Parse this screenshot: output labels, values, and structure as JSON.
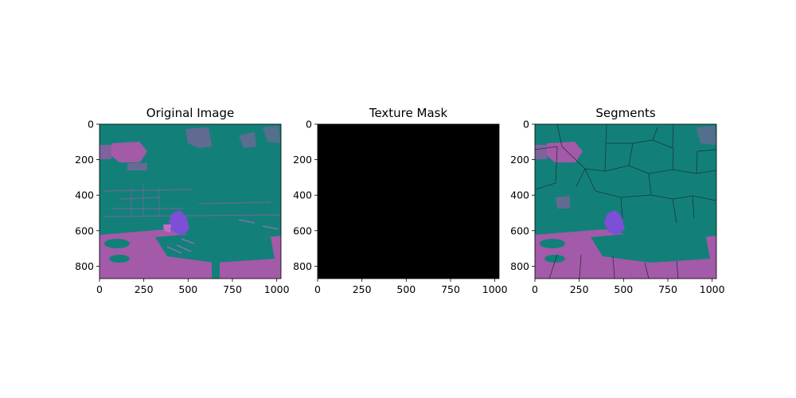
{
  "chart_data": [
    {
      "type": "image",
      "title": "Original Image",
      "xlim": [
        0,
        1024
      ],
      "ylim": [
        0,
        870
      ],
      "xticks": [
        0,
        250,
        500,
        750,
        1000
      ],
      "yticks": [
        0,
        200,
        400,
        600,
        800
      ],
      "xtick_labels": [
        "0",
        "250",
        "500",
        "750",
        "1000"
      ],
      "ytick_labels": [
        "0",
        "200",
        "400",
        "600",
        "800"
      ],
      "colors": {
        "teal": "#128079",
        "magenta": "#a35aa8",
        "purple": "#7c4fd6",
        "lilac": "#c76bc9"
      }
    },
    {
      "type": "image",
      "title": "Texture Mask",
      "xlim": [
        0,
        1024
      ],
      "ylim": [
        0,
        870
      ],
      "xticks": [
        0,
        250,
        500,
        750,
        1000
      ],
      "yticks": [
        0,
        200,
        400,
        600,
        800
      ],
      "xtick_labels": [
        "0",
        "250",
        "500",
        "750",
        "1000"
      ],
      "ytick_labels": [
        "0",
        "200",
        "400",
        "600",
        "800"
      ],
      "colors": {
        "fill": "#000000"
      }
    },
    {
      "type": "image",
      "title": "Segments",
      "xlim": [
        0,
        1024
      ],
      "ylim": [
        0,
        870
      ],
      "xticks": [
        0,
        250,
        500,
        750,
        1000
      ],
      "yticks": [
        0,
        200,
        400,
        600,
        800
      ],
      "xtick_labels": [
        "0",
        "250",
        "500",
        "750",
        "1000"
      ],
      "ytick_labels": [
        "0",
        "200",
        "400",
        "600",
        "800"
      ],
      "colors": {
        "teal": "#128079",
        "magenta": "#a35aa8",
        "purple": "#7c4fd6",
        "boundary": "#1a2b2a"
      }
    }
  ]
}
